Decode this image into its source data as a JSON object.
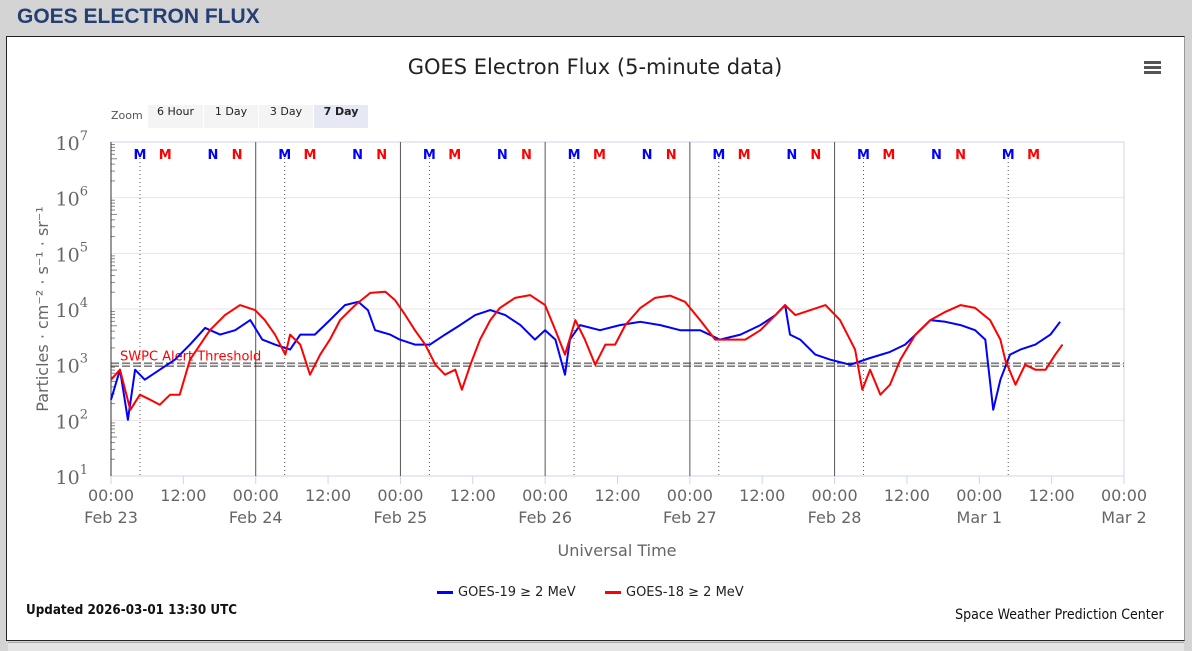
{
  "page_title": "GOES ELECTRON FLUX",
  "zoom": {
    "label": "Zoom",
    "buttons": [
      "6 Hour",
      "1 Day",
      "3 Day",
      "7 Day"
    ],
    "selected": "7 Day"
  },
  "updated": "Updated 2026-03-01 13:30 UTC",
  "credit": "Space Weather Prediction Center",
  "menu_icon": "hamburger-menu-icon",
  "colors": {
    "goes19": "#0000ff",
    "goes18": "#ff0000",
    "threshold_label": "#ff0000",
    "header": "#253f72"
  },
  "chart_data": {
    "type": "line",
    "title": "GOES Electron Flux (5-minute data)",
    "xlabel": "Universal Time",
    "ylabel": "Particles · cm⁻² · s⁻¹ · sr⁻¹",
    "yscale": "log",
    "ylim": [
      10,
      10000000
    ],
    "y_ticks": [
      {
        "base": "10",
        "exp": "1"
      },
      {
        "base": "10",
        "exp": "2"
      },
      {
        "base": "10",
        "exp": "3"
      },
      {
        "base": "10",
        "exp": "4"
      },
      {
        "base": "10",
        "exp": "5"
      },
      {
        "base": "10",
        "exp": "6"
      },
      {
        "base": "10",
        "exp": "7"
      }
    ],
    "x_unit": "hours since 2026-02-23 00:00 UTC",
    "xlim": [
      0,
      168
    ],
    "x_ticks": [
      {
        "h": 0,
        "time": "00:00",
        "date": "Feb 23"
      },
      {
        "h": 12,
        "time": "12:00",
        "date": ""
      },
      {
        "h": 24,
        "time": "00:00",
        "date": "Feb 24"
      },
      {
        "h": 36,
        "time": "12:00",
        "date": ""
      },
      {
        "h": 48,
        "time": "00:00",
        "date": "Feb 25"
      },
      {
        "h": 60,
        "time": "12:00",
        "date": ""
      },
      {
        "h": 72,
        "time": "00:00",
        "date": "Feb 26"
      },
      {
        "h": 84,
        "time": "12:00",
        "date": ""
      },
      {
        "h": 96,
        "time": "00:00",
        "date": "Feb 27"
      },
      {
        "h": 108,
        "time": "12:00",
        "date": ""
      },
      {
        "h": 120,
        "time": "00:00",
        "date": "Feb 28"
      },
      {
        "h": 132,
        "time": "12:00",
        "date": ""
      },
      {
        "h": 144,
        "time": "00:00",
        "date": "Mar 1"
      },
      {
        "h": 156,
        "time": "12:00",
        "date": ""
      },
      {
        "h": 168,
        "time": "00:00",
        "date": "Mar 2"
      }
    ],
    "day_lines_h": [
      24,
      48,
      72,
      96,
      120
    ],
    "threshold": {
      "value": 1000,
      "label": "SWPC Alert Threshold"
    },
    "markers": [
      {
        "h": 4.8,
        "text": "M",
        "sat": "goes19"
      },
      {
        "h": 9.0,
        "text": "M",
        "sat": "goes18"
      },
      {
        "h": 16.9,
        "text": "N",
        "sat": "goes19"
      },
      {
        "h": 20.9,
        "text": "N",
        "sat": "goes18"
      },
      {
        "h": 28.8,
        "text": "M",
        "sat": "goes19"
      },
      {
        "h": 33.0,
        "text": "M",
        "sat": "goes18"
      },
      {
        "h": 40.9,
        "text": "N",
        "sat": "goes19"
      },
      {
        "h": 44.9,
        "text": "N",
        "sat": "goes18"
      },
      {
        "h": 52.8,
        "text": "M",
        "sat": "goes19"
      },
      {
        "h": 57.0,
        "text": "M",
        "sat": "goes18"
      },
      {
        "h": 64.9,
        "text": "N",
        "sat": "goes19"
      },
      {
        "h": 68.9,
        "text": "N",
        "sat": "goes18"
      },
      {
        "h": 76.8,
        "text": "M",
        "sat": "goes19"
      },
      {
        "h": 81.0,
        "text": "M",
        "sat": "goes18"
      },
      {
        "h": 88.9,
        "text": "N",
        "sat": "goes19"
      },
      {
        "h": 92.9,
        "text": "N",
        "sat": "goes18"
      },
      {
        "h": 100.8,
        "text": "M",
        "sat": "goes19"
      },
      {
        "h": 105.0,
        "text": "M",
        "sat": "goes18"
      },
      {
        "h": 112.9,
        "text": "N",
        "sat": "goes19"
      },
      {
        "h": 116.9,
        "text": "N",
        "sat": "goes18"
      },
      {
        "h": 124.8,
        "text": "M",
        "sat": "goes19"
      },
      {
        "h": 129.0,
        "text": "M",
        "sat": "goes18"
      },
      {
        "h": 136.9,
        "text": "N",
        "sat": "goes19"
      },
      {
        "h": 140.9,
        "text": "N",
        "sat": "goes18"
      },
      {
        "h": 148.8,
        "text": "M",
        "sat": "goes19"
      },
      {
        "h": 153.0,
        "text": "M",
        "sat": "goes18"
      }
    ],
    "series": [
      {
        "name": "GOES-19 ≥ 2 MeV",
        "key": "goes19",
        "color": "#0000ff",
        "log10_flux": [
          [
            0,
            2.37
          ],
          [
            1.5,
            2.91
          ],
          [
            2.8,
            2.01
          ],
          [
            4.0,
            2.91
          ],
          [
            5.6,
            2.73
          ],
          [
            8.1,
            2.91
          ],
          [
            10.6,
            3.09
          ],
          [
            13.1,
            3.36
          ],
          [
            15.6,
            3.66
          ],
          [
            18.1,
            3.54
          ],
          [
            20.6,
            3.62
          ],
          [
            23.1,
            3.8
          ],
          [
            25.1,
            3.45
          ],
          [
            27.2,
            3.36
          ],
          [
            29.7,
            3.27
          ],
          [
            31.4,
            3.54
          ],
          [
            33.8,
            3.54
          ],
          [
            36.3,
            3.8
          ],
          [
            38.8,
            4.07
          ],
          [
            41.0,
            4.13
          ],
          [
            42.6,
            3.98
          ],
          [
            43.8,
            3.62
          ],
          [
            46.3,
            3.54
          ],
          [
            47.9,
            3.45
          ],
          [
            50.4,
            3.36
          ],
          [
            52.9,
            3.36
          ],
          [
            55.4,
            3.54
          ],
          [
            57.9,
            3.71
          ],
          [
            60.4,
            3.89
          ],
          [
            62.9,
            3.98
          ],
          [
            65.4,
            3.89
          ],
          [
            67.9,
            3.71
          ],
          [
            70.3,
            3.45
          ],
          [
            72.0,
            3.62
          ],
          [
            73.7,
            3.45
          ],
          [
            75.3,
            2.82
          ],
          [
            76.1,
            3.45
          ],
          [
            77.8,
            3.71
          ],
          [
            81.1,
            3.62
          ],
          [
            84.4,
            3.71
          ],
          [
            87.8,
            3.77
          ],
          [
            91.1,
            3.71
          ],
          [
            94.4,
            3.62
          ],
          [
            97.7,
            3.62
          ],
          [
            101.0,
            3.45
          ],
          [
            104.4,
            3.54
          ],
          [
            107.7,
            3.71
          ],
          [
            110.2,
            3.89
          ],
          [
            111.8,
            4.07
          ],
          [
            112.6,
            3.54
          ],
          [
            114.3,
            3.45
          ],
          [
            116.8,
            3.18
          ],
          [
            119.3,
            3.09
          ],
          [
            122.6,
            3.0
          ],
          [
            125.9,
            3.12
          ],
          [
            129.2,
            3.23
          ],
          [
            131.7,
            3.36
          ],
          [
            134.2,
            3.62
          ],
          [
            135.9,
            3.8
          ],
          [
            138.4,
            3.77
          ],
          [
            140.9,
            3.71
          ],
          [
            143.3,
            3.62
          ],
          [
            145.0,
            3.45
          ],
          [
            146.3,
            2.19
          ],
          [
            147.5,
            2.73
          ],
          [
            149.1,
            3.18
          ],
          [
            150.8,
            3.27
          ],
          [
            153.3,
            3.36
          ],
          [
            155.8,
            3.54
          ],
          [
            157.4,
            3.77
          ]
        ]
      },
      {
        "name": "GOES-18 ≥ 2 MeV",
        "key": "goes18",
        "color": "#ff0000",
        "log10_flux": [
          [
            0,
            2.73
          ],
          [
            1.5,
            2.91
          ],
          [
            3.2,
            2.19
          ],
          [
            4.8,
            2.46
          ],
          [
            6.5,
            2.37
          ],
          [
            8.1,
            2.28
          ],
          [
            9.8,
            2.46
          ],
          [
            11.4,
            2.46
          ],
          [
            13.1,
            3.09
          ],
          [
            14.8,
            3.36
          ],
          [
            16.4,
            3.62
          ],
          [
            18.9,
            3.89
          ],
          [
            21.4,
            4.07
          ],
          [
            23.9,
            3.98
          ],
          [
            25.5,
            3.8
          ],
          [
            27.2,
            3.54
          ],
          [
            28.9,
            3.18
          ],
          [
            29.7,
            3.54
          ],
          [
            31.4,
            3.36
          ],
          [
            33.0,
            2.82
          ],
          [
            34.7,
            3.18
          ],
          [
            36.3,
            3.45
          ],
          [
            38.0,
            3.8
          ],
          [
            40.5,
            4.07
          ],
          [
            43.0,
            4.29
          ],
          [
            45.5,
            4.31
          ],
          [
            47.1,
            4.16
          ],
          [
            48.8,
            3.89
          ],
          [
            50.4,
            3.62
          ],
          [
            52.1,
            3.36
          ],
          [
            53.8,
            3.0
          ],
          [
            55.4,
            2.82
          ],
          [
            57.1,
            2.91
          ],
          [
            58.2,
            2.55
          ],
          [
            59.6,
            3.0
          ],
          [
            61.2,
            3.45
          ],
          [
            62.9,
            3.8
          ],
          [
            64.5,
            4.02
          ],
          [
            67.0,
            4.2
          ],
          [
            69.5,
            4.25
          ],
          [
            72.0,
            4.07
          ],
          [
            73.7,
            3.62
          ],
          [
            75.3,
            3.18
          ],
          [
            77.0,
            3.8
          ],
          [
            78.6,
            3.45
          ],
          [
            80.3,
            3.0
          ],
          [
            82.0,
            3.36
          ],
          [
            83.6,
            3.36
          ],
          [
            85.3,
            3.71
          ],
          [
            87.8,
            4.02
          ],
          [
            90.2,
            4.2
          ],
          [
            92.7,
            4.24
          ],
          [
            95.2,
            4.13
          ],
          [
            97.7,
            3.8
          ],
          [
            100.2,
            3.45
          ],
          [
            102.7,
            3.45
          ],
          [
            105.2,
            3.45
          ],
          [
            107.7,
            3.62
          ],
          [
            110.2,
            3.89
          ],
          [
            111.8,
            4.07
          ],
          [
            113.5,
            3.89
          ],
          [
            116.0,
            3.98
          ],
          [
            118.5,
            4.07
          ],
          [
            120.9,
            3.8
          ],
          [
            123.4,
            3.27
          ],
          [
            124.6,
            2.55
          ],
          [
            125.9,
            2.91
          ],
          [
            127.6,
            2.46
          ],
          [
            129.2,
            2.64
          ],
          [
            130.9,
            3.09
          ],
          [
            133.4,
            3.54
          ],
          [
            135.9,
            3.8
          ],
          [
            138.4,
            3.95
          ],
          [
            140.9,
            4.07
          ],
          [
            143.3,
            4.02
          ],
          [
            145.8,
            3.8
          ],
          [
            147.5,
            3.45
          ],
          [
            148.3,
            3.09
          ],
          [
            150.0,
            2.64
          ],
          [
            151.6,
            3.0
          ],
          [
            153.3,
            2.91
          ],
          [
            155.0,
            2.91
          ],
          [
            156.6,
            3.18
          ],
          [
            157.8,
            3.36
          ]
        ]
      }
    ]
  }
}
